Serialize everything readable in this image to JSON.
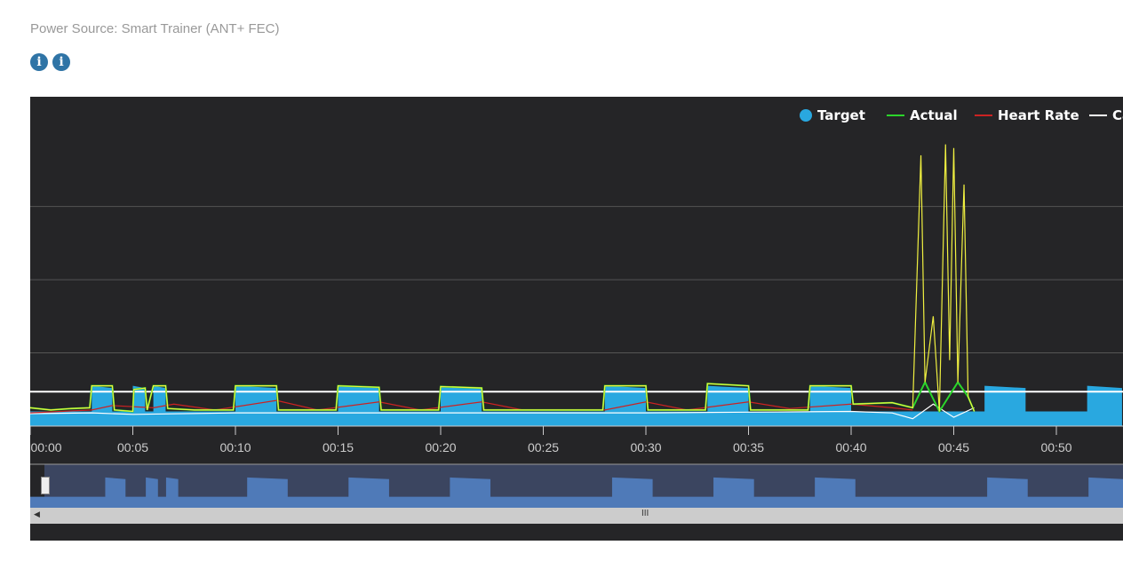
{
  "power_source": {
    "label": "Power Source:",
    "value": "Smart Trainer (ANT+ FEC)"
  },
  "info_icons": [
    "i",
    "i"
  ],
  "chart_data": {
    "type": "line",
    "legend": [
      {
        "name": "Target",
        "color": "#29a8e0",
        "marker": "circle"
      },
      {
        "name": "Actual",
        "color": "#2bd52b"
      },
      {
        "name": "Heart Rate",
        "color": "#cc2222"
      },
      {
        "name": "Ca",
        "color": "#ffffff"
      }
    ],
    "legend_position": "top-right",
    "xlabel": "",
    "ylabel": "",
    "x_ticks": [
      "00:00",
      "00:05",
      "00:10",
      "00:15",
      "00:20",
      "00:25",
      "00:30",
      "00:35",
      "00:40",
      "00:45",
      "00:50"
    ],
    "xlim": [
      0,
      53.2
    ],
    "ylim": [
      0,
      450
    ],
    "grid": true,
    "target": {
      "base": 20,
      "intervals": [
        [
          3,
          4,
          55
        ],
        [
          5,
          5.6,
          55
        ],
        [
          6,
          6.6,
          55
        ],
        [
          10,
          12,
          55
        ],
        [
          15,
          17,
          55
        ],
        [
          20,
          22,
          55
        ],
        [
          28,
          30,
          55
        ],
        [
          33,
          35,
          55
        ],
        [
          38,
          40,
          55
        ],
        [
          46.5,
          48.5,
          55
        ],
        [
          51.5,
          53.2,
          55
        ]
      ]
    },
    "threshold": 47,
    "actual": [
      [
        0,
        25
      ],
      [
        1,
        22
      ],
      [
        2,
        24
      ],
      [
        2.9,
        25
      ],
      [
        3,
        55
      ],
      [
        4,
        55
      ],
      [
        4.1,
        22
      ],
      [
        5,
        20
      ],
      [
        5.05,
        50
      ],
      [
        5.6,
        52
      ],
      [
        5.7,
        22
      ],
      [
        6,
        55
      ],
      [
        6.6,
        55
      ],
      [
        6.7,
        24
      ],
      [
        8,
        22
      ],
      [
        9.9,
        22
      ],
      [
        10,
        55
      ],
      [
        12,
        55
      ],
      [
        12.1,
        22
      ],
      [
        14.9,
        22
      ],
      [
        15,
        55
      ],
      [
        17,
        53
      ],
      [
        17.1,
        22
      ],
      [
        19.9,
        22
      ],
      [
        20,
        54
      ],
      [
        22,
        52
      ],
      [
        22.1,
        22
      ],
      [
        25,
        22
      ],
      [
        27.9,
        22
      ],
      [
        28,
        55
      ],
      [
        30,
        55
      ],
      [
        30.1,
        22
      ],
      [
        32.9,
        22
      ],
      [
        33,
        58
      ],
      [
        35,
        55
      ],
      [
        35.1,
        22
      ],
      [
        37.9,
        22
      ],
      [
        38,
        55
      ],
      [
        40,
        55
      ],
      [
        40.1,
        30
      ],
      [
        42,
        32
      ],
      [
        43,
        25
      ],
      [
        43.4,
        370
      ],
      [
        43.6,
        60
      ],
      [
        44,
        150
      ],
      [
        44.3,
        20
      ],
      [
        44.6,
        385
      ],
      [
        44.8,
        90
      ],
      [
        45,
        380
      ],
      [
        45.2,
        60
      ],
      [
        45.5,
        330
      ],
      [
        45.7,
        40
      ],
      [
        46,
        20
      ]
    ],
    "heart_rate": [
      [
        0,
        18
      ],
      [
        3,
        22
      ],
      [
        4,
        28
      ],
      [
        6,
        25
      ],
      [
        7,
        30
      ],
      [
        9,
        22
      ],
      [
        12,
        35
      ],
      [
        14,
        22
      ],
      [
        17,
        33
      ],
      [
        19,
        22
      ],
      [
        22,
        33
      ],
      [
        24,
        22
      ],
      [
        28,
        22
      ],
      [
        30,
        33
      ],
      [
        32,
        22
      ],
      [
        35,
        33
      ],
      [
        37,
        24
      ],
      [
        40,
        30
      ],
      [
        42,
        25
      ],
      [
        43,
        22
      ]
    ],
    "cadence": [
      [
        0,
        17
      ],
      [
        3,
        18
      ],
      [
        5,
        16
      ],
      [
        10,
        18
      ],
      [
        15,
        18
      ],
      [
        20,
        18
      ],
      [
        25,
        18
      ],
      [
        30,
        18
      ],
      [
        35,
        19
      ],
      [
        40,
        20
      ],
      [
        42,
        18
      ],
      [
        43,
        10
      ],
      [
        44,
        30
      ],
      [
        45,
        12
      ],
      [
        46,
        25
      ]
    ]
  },
  "navigator": {
    "scroll_grip": "III"
  }
}
